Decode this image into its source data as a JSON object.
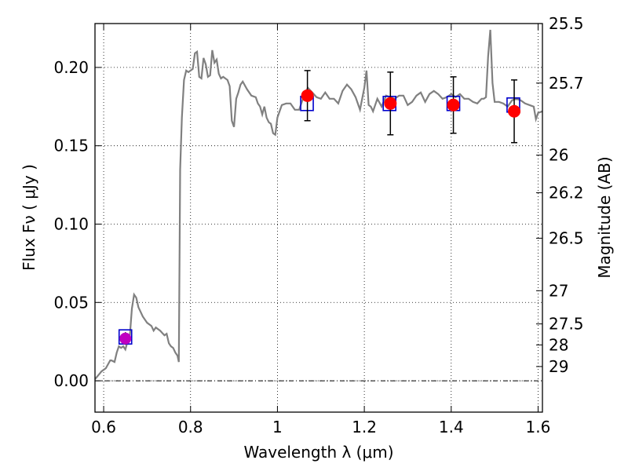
{
  "chart_data": {
    "type": "line",
    "xlabel": "Wavelength  λ (μm)",
    "ylabel": "Flux  Fν  ( μJy )",
    "y2label": "Magnitude (AB)",
    "xlim": [
      0.58,
      1.61
    ],
    "ylim": [
      -0.02,
      0.228
    ],
    "grid": true,
    "x_ticks": [
      {
        "value": 0.6,
        "label": "0.6"
      },
      {
        "value": 0.8,
        "label": "0.8"
      },
      {
        "value": 1.0,
        "label": "1"
      },
      {
        "value": 1.2,
        "label": "1.2"
      },
      {
        "value": 1.4,
        "label": "1.4"
      },
      {
        "value": 1.6,
        "label": "1.6"
      }
    ],
    "y_ticks": [
      {
        "value": 0.0,
        "label": "0.00"
      },
      {
        "value": 0.05,
        "label": "0.05"
      },
      {
        "value": 0.1,
        "label": "0.10"
      },
      {
        "value": 0.15,
        "label": "0.15"
      },
      {
        "value": 0.2,
        "label": "0.20"
      }
    ],
    "y2_ticks": [
      {
        "label": "25.5",
        "flux": 0.228
      },
      {
        "label": "25.7",
        "flux": 0.19
      },
      {
        "label": "26",
        "flux": 0.144
      },
      {
        "label": "26.2",
        "flux": 0.12
      },
      {
        "label": "26.5",
        "flux": 0.091
      },
      {
        "label": "27",
        "flux": 0.0575
      },
      {
        "label": "27.5",
        "flux": 0.0363
      },
      {
        "label": "28",
        "flux": 0.0229
      },
      {
        "label": "29",
        "flux": 0.0091
      }
    ],
    "series": [
      {
        "role": "model spectrum",
        "color": "#808080",
        "x": [
          0.58,
          0.595,
          0.605,
          0.615,
          0.618,
          0.625,
          0.63,
          0.635,
          0.64,
          0.645,
          0.65,
          0.655,
          0.66,
          0.665,
          0.67,
          0.675,
          0.68,
          0.69,
          0.7,
          0.71,
          0.715,
          0.72,
          0.73,
          0.74,
          0.745,
          0.75,
          0.755,
          0.76,
          0.765,
          0.77,
          0.773,
          0.776,
          0.78,
          0.785,
          0.79,
          0.795,
          0.8,
          0.805,
          0.81,
          0.815,
          0.82,
          0.825,
          0.83,
          0.835,
          0.84,
          0.845,
          0.85,
          0.855,
          0.86,
          0.865,
          0.87,
          0.875,
          0.88,
          0.885,
          0.89,
          0.895,
          0.9,
          0.905,
          0.91,
          0.915,
          0.92,
          0.93,
          0.94,
          0.95,
          0.955,
          0.96,
          0.965,
          0.97,
          0.975,
          0.98,
          0.985,
          0.99,
          0.995,
          1.0,
          1.01,
          1.02,
          1.03,
          1.04,
          1.05,
          1.06,
          1.07,
          1.08,
          1.09,
          1.1,
          1.11,
          1.12,
          1.13,
          1.14,
          1.15,
          1.16,
          1.17,
          1.18,
          1.19,
          1.2,
          1.205,
          1.21,
          1.215,
          1.22,
          1.23,
          1.24,
          1.25,
          1.26,
          1.27,
          1.28,
          1.29,
          1.3,
          1.31,
          1.32,
          1.33,
          1.34,
          1.35,
          1.36,
          1.37,
          1.38,
          1.39,
          1.4,
          1.41,
          1.42,
          1.43,
          1.44,
          1.45,
          1.46,
          1.47,
          1.475,
          1.48,
          1.485,
          1.49,
          1.495,
          1.5,
          1.51,
          1.52,
          1.53,
          1.54,
          1.55,
          1.56,
          1.57,
          1.58,
          1.59,
          1.595,
          1.6,
          1.61
        ],
        "y": [
          0.001,
          0.006,
          0.008,
          0.013,
          0.013,
          0.012,
          0.018,
          0.022,
          0.021,
          0.022,
          0.02,
          0.025,
          0.028,
          0.046,
          0.055,
          0.053,
          0.047,
          0.041,
          0.037,
          0.035,
          0.032,
          0.034,
          0.032,
          0.029,
          0.03,
          0.024,
          0.022,
          0.021,
          0.018,
          0.016,
          0.012,
          0.135,
          0.168,
          0.192,
          0.198,
          0.197,
          0.198,
          0.199,
          0.209,
          0.21,
          0.194,
          0.193,
          0.206,
          0.202,
          0.194,
          0.195,
          0.211,
          0.203,
          0.205,
          0.196,
          0.193,
          0.194,
          0.193,
          0.192,
          0.188,
          0.166,
          0.162,
          0.18,
          0.184,
          0.189,
          0.191,
          0.186,
          0.182,
          0.181,
          0.177,
          0.175,
          0.17,
          0.175,
          0.168,
          0.165,
          0.164,
          0.158,
          0.157,
          0.168,
          0.176,
          0.177,
          0.177,
          0.173,
          0.173,
          0.181,
          0.187,
          0.184,
          0.181,
          0.18,
          0.184,
          0.18,
          0.18,
          0.177,
          0.185,
          0.189,
          0.186,
          0.181,
          0.173,
          0.187,
          0.198,
          0.176,
          0.175,
          0.172,
          0.18,
          0.175,
          0.182,
          0.181,
          0.18,
          0.182,
          0.182,
          0.176,
          0.178,
          0.182,
          0.184,
          0.178,
          0.183,
          0.185,
          0.183,
          0.18,
          0.181,
          0.183,
          0.181,
          0.183,
          0.18,
          0.18,
          0.178,
          0.177,
          0.18,
          0.18,
          0.181,
          0.207,
          0.224,
          0.19,
          0.178,
          0.178,
          0.177,
          0.175,
          0.179,
          0.18,
          0.179,
          0.177,
          0.176,
          0.175,
          0.167,
          0.171,
          0.172
        ]
      },
      {
        "role": "blue squares",
        "color": "#0000cc",
        "points": [
          {
            "x": 0.65,
            "y": 0.028
          },
          {
            "x": 1.068,
            "y": 0.177
          },
          {
            "x": 1.258,
            "y": 0.177
          },
          {
            "x": 1.405,
            "y": 0.177
          },
          {
            "x": 1.543,
            "y": 0.176
          }
        ]
      },
      {
        "role": "red points with error bars",
        "color": "#ff0000",
        "points": [
          {
            "x": 1.069,
            "y": 0.182,
            "err": 0.016
          },
          {
            "x": 1.26,
            "y": 0.177,
            "err": 0.02
          },
          {
            "x": 1.405,
            "y": 0.176,
            "err": 0.018
          },
          {
            "x": 1.545,
            "y": 0.172,
            "err": 0.02
          }
        ]
      },
      {
        "role": "magenta point",
        "color": "#c000c0",
        "points": [
          {
            "x": 0.65,
            "y": 0.027,
            "err": 0.004
          }
        ]
      }
    ]
  }
}
